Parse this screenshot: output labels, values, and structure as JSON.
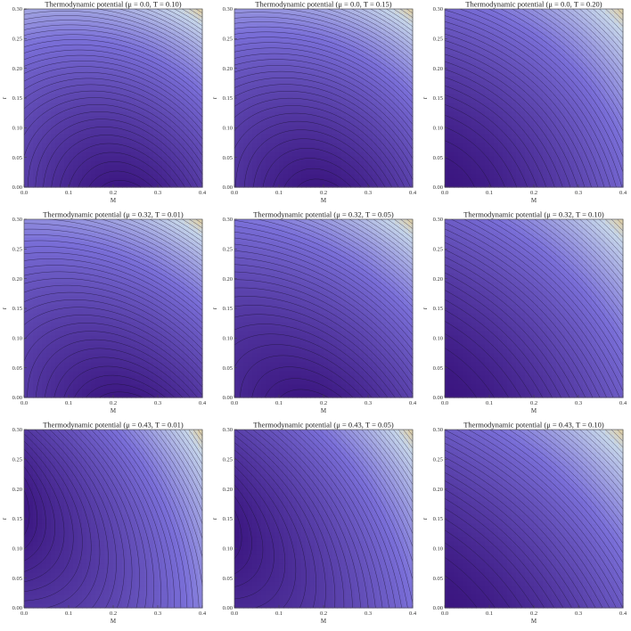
{
  "chart_data": [
    {
      "type": "contour",
      "title": "Thermodynamic potential (μ = 0.0, T = 0.10)",
      "xlabel": "M",
      "ylabel": "r",
      "xlim": [
        0,
        0.4
      ],
      "ylim": [
        0,
        0.3
      ],
      "xticks": [
        "0.0",
        "0.1",
        "0.2",
        "0.3",
        "0.4"
      ],
      "yticks": [
        "0.00",
        "0.05",
        "0.10",
        "0.15",
        "0.20",
        "0.25",
        "0.30"
      ],
      "minimum": {
        "M": 0.3,
        "r": 0.0
      }
    },
    {
      "type": "contour",
      "title": "Thermodynamic potential (μ = 0.0, T = 0.15)",
      "xlabel": "M",
      "ylabel": "r",
      "xlim": [
        0,
        0.4
      ],
      "ylim": [
        0,
        0.3
      ],
      "xticks": [
        "0.0",
        "0.1",
        "0.2",
        "0.3",
        "0.4"
      ],
      "yticks": [
        "0.00",
        "0.05",
        "0.10",
        "0.15",
        "0.20",
        "0.25",
        "0.30"
      ],
      "minimum": {
        "M": 0.25,
        "r": 0.0
      }
    },
    {
      "type": "contour",
      "title": "Thermodynamic potential (μ = 0.0, T = 0.20)",
      "xlabel": "M",
      "ylabel": "r",
      "xlim": [
        0,
        0.4
      ],
      "ylim": [
        0,
        0.3
      ],
      "xticks": [
        "0.0",
        "0.1",
        "0.2",
        "0.3",
        "0.4"
      ],
      "yticks": [
        "0.00",
        "0.05",
        "0.10",
        "0.15",
        "0.20",
        "0.25",
        "0.30"
      ],
      "minimum": {
        "M": 0.0,
        "r": 0.0
      }
    },
    {
      "type": "contour",
      "title": "Thermodynamic potential (μ = 0.32, T = 0.01)",
      "xlabel": "M",
      "ylabel": "r",
      "xlim": [
        0,
        0.4
      ],
      "ylim": [
        0,
        0.3
      ],
      "xticks": [
        "0.0",
        "0.1",
        "0.2",
        "0.3",
        "0.4"
      ],
      "yticks": [
        "0.00",
        "0.05",
        "0.10",
        "0.15",
        "0.20",
        "0.25",
        "0.30"
      ],
      "minimum": {
        "M": 0.3,
        "r": 0.0
      }
    },
    {
      "type": "contour",
      "title": "Thermodynamic potential (μ = 0.32, T = 0.05)",
      "xlabel": "M",
      "ylabel": "r",
      "xlim": [
        0,
        0.4
      ],
      "ylim": [
        0,
        0.3
      ],
      "xticks": [
        "0.0",
        "0.1",
        "0.2",
        "0.3",
        "0.4"
      ],
      "yticks": [
        "0.00",
        "0.05",
        "0.10",
        "0.15",
        "0.20",
        "0.25",
        "0.30"
      ],
      "minimum": {
        "M": 0.2,
        "r": 0.0
      }
    },
    {
      "type": "contour",
      "title": "Thermodynamic potential (μ = 0.32, T = 0.10)",
      "xlabel": "M",
      "ylabel": "r",
      "xlim": [
        0,
        0.4
      ],
      "ylim": [
        0,
        0.3
      ],
      "xticks": [
        "0.0",
        "0.1",
        "0.2",
        "0.3",
        "0.4"
      ],
      "yticks": [
        "0.00",
        "0.05",
        "0.10",
        "0.15",
        "0.20",
        "0.25",
        "0.30"
      ],
      "minimum": {
        "M": 0.0,
        "r": 0.0
      }
    },
    {
      "type": "contour",
      "title": "Thermodynamic potential (μ = 0.43, T = 0.01)",
      "xlabel": "M",
      "ylabel": "r",
      "xlim": [
        0,
        0.4
      ],
      "ylim": [
        0,
        0.3
      ],
      "xticks": [
        "0.0",
        "0.1",
        "0.2",
        "0.3",
        "0.4"
      ],
      "yticks": [
        "0.00",
        "0.05",
        "0.10",
        "0.15",
        "0.20",
        "0.25",
        "0.30"
      ],
      "minimum": {
        "M": 0.0,
        "r": 0.22
      }
    },
    {
      "type": "contour",
      "title": "Thermodynamic potential (μ = 0.43, T = 0.05)",
      "xlabel": "M",
      "ylabel": "r",
      "xlim": [
        0,
        0.4
      ],
      "ylim": [
        0,
        0.3
      ],
      "xticks": [
        "0.0",
        "0.1",
        "0.2",
        "0.3",
        "0.4"
      ],
      "yticks": [
        "0.00",
        "0.05",
        "0.10",
        "0.15",
        "0.20",
        "0.25",
        "0.30"
      ],
      "minimum": {
        "M": 0.0,
        "r": 0.16
      }
    },
    {
      "type": "contour",
      "title": "Thermodynamic potential (μ = 0.43, T = 0.10)",
      "xlabel": "M",
      "ylabel": "r",
      "xlim": [
        0,
        0.4
      ],
      "ylim": [
        0,
        0.3
      ],
      "xticks": [
        "0.0",
        "0.1",
        "0.2",
        "0.3",
        "0.4"
      ],
      "yticks": [
        "0.00",
        "0.05",
        "0.10",
        "0.15",
        "0.20",
        "0.25",
        "0.30"
      ],
      "minimum": {
        "M": 0.0,
        "r": 0.0
      }
    }
  ],
  "colors": {
    "low": "#3b1680",
    "mid": "#7a6fd8",
    "high": "#c6d6ea",
    "corner": "#e3cf9c",
    "contour_line": "#1a1030"
  }
}
